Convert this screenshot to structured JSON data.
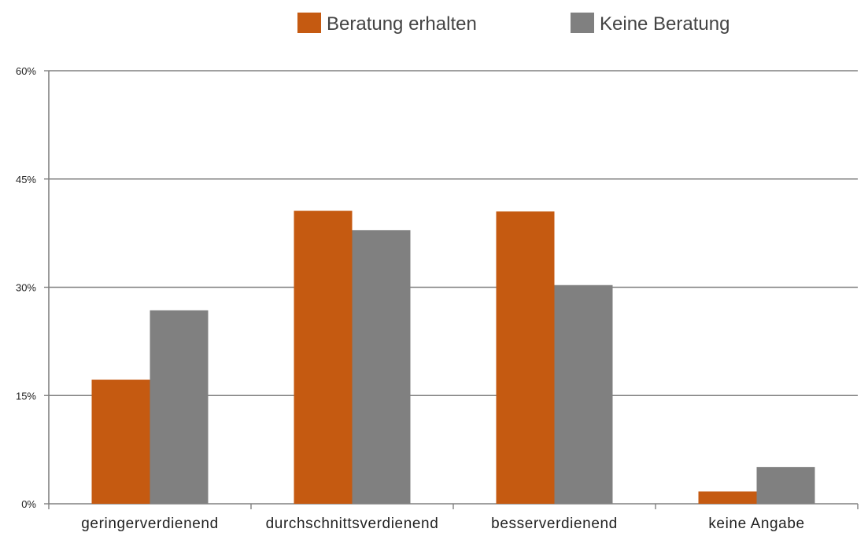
{
  "chart_data": {
    "type": "bar",
    "categories": [
      "geringerverdienend",
      "durchschnittsverdienend",
      "besserverdienend",
      "keine Angabe"
    ],
    "series": [
      {
        "name": "Beratung erhalten",
        "color": "#c55a11",
        "values": [
          17.2,
          40.6,
          40.5,
          1.7
        ]
      },
      {
        "name": "Keine Beratung",
        "color": "#808080",
        "values": [
          26.8,
          37.9,
          30.3,
          5.1
        ]
      }
    ],
    "y_ticks": [
      0,
      15,
      30,
      45,
      60
    ],
    "y_tick_labels": [
      "0%",
      "15%",
      "30%",
      "45%",
      "60%"
    ],
    "ylim": [
      0,
      60
    ],
    "grid": true,
    "legend_position": "top",
    "gridline_color": "#808080"
  }
}
